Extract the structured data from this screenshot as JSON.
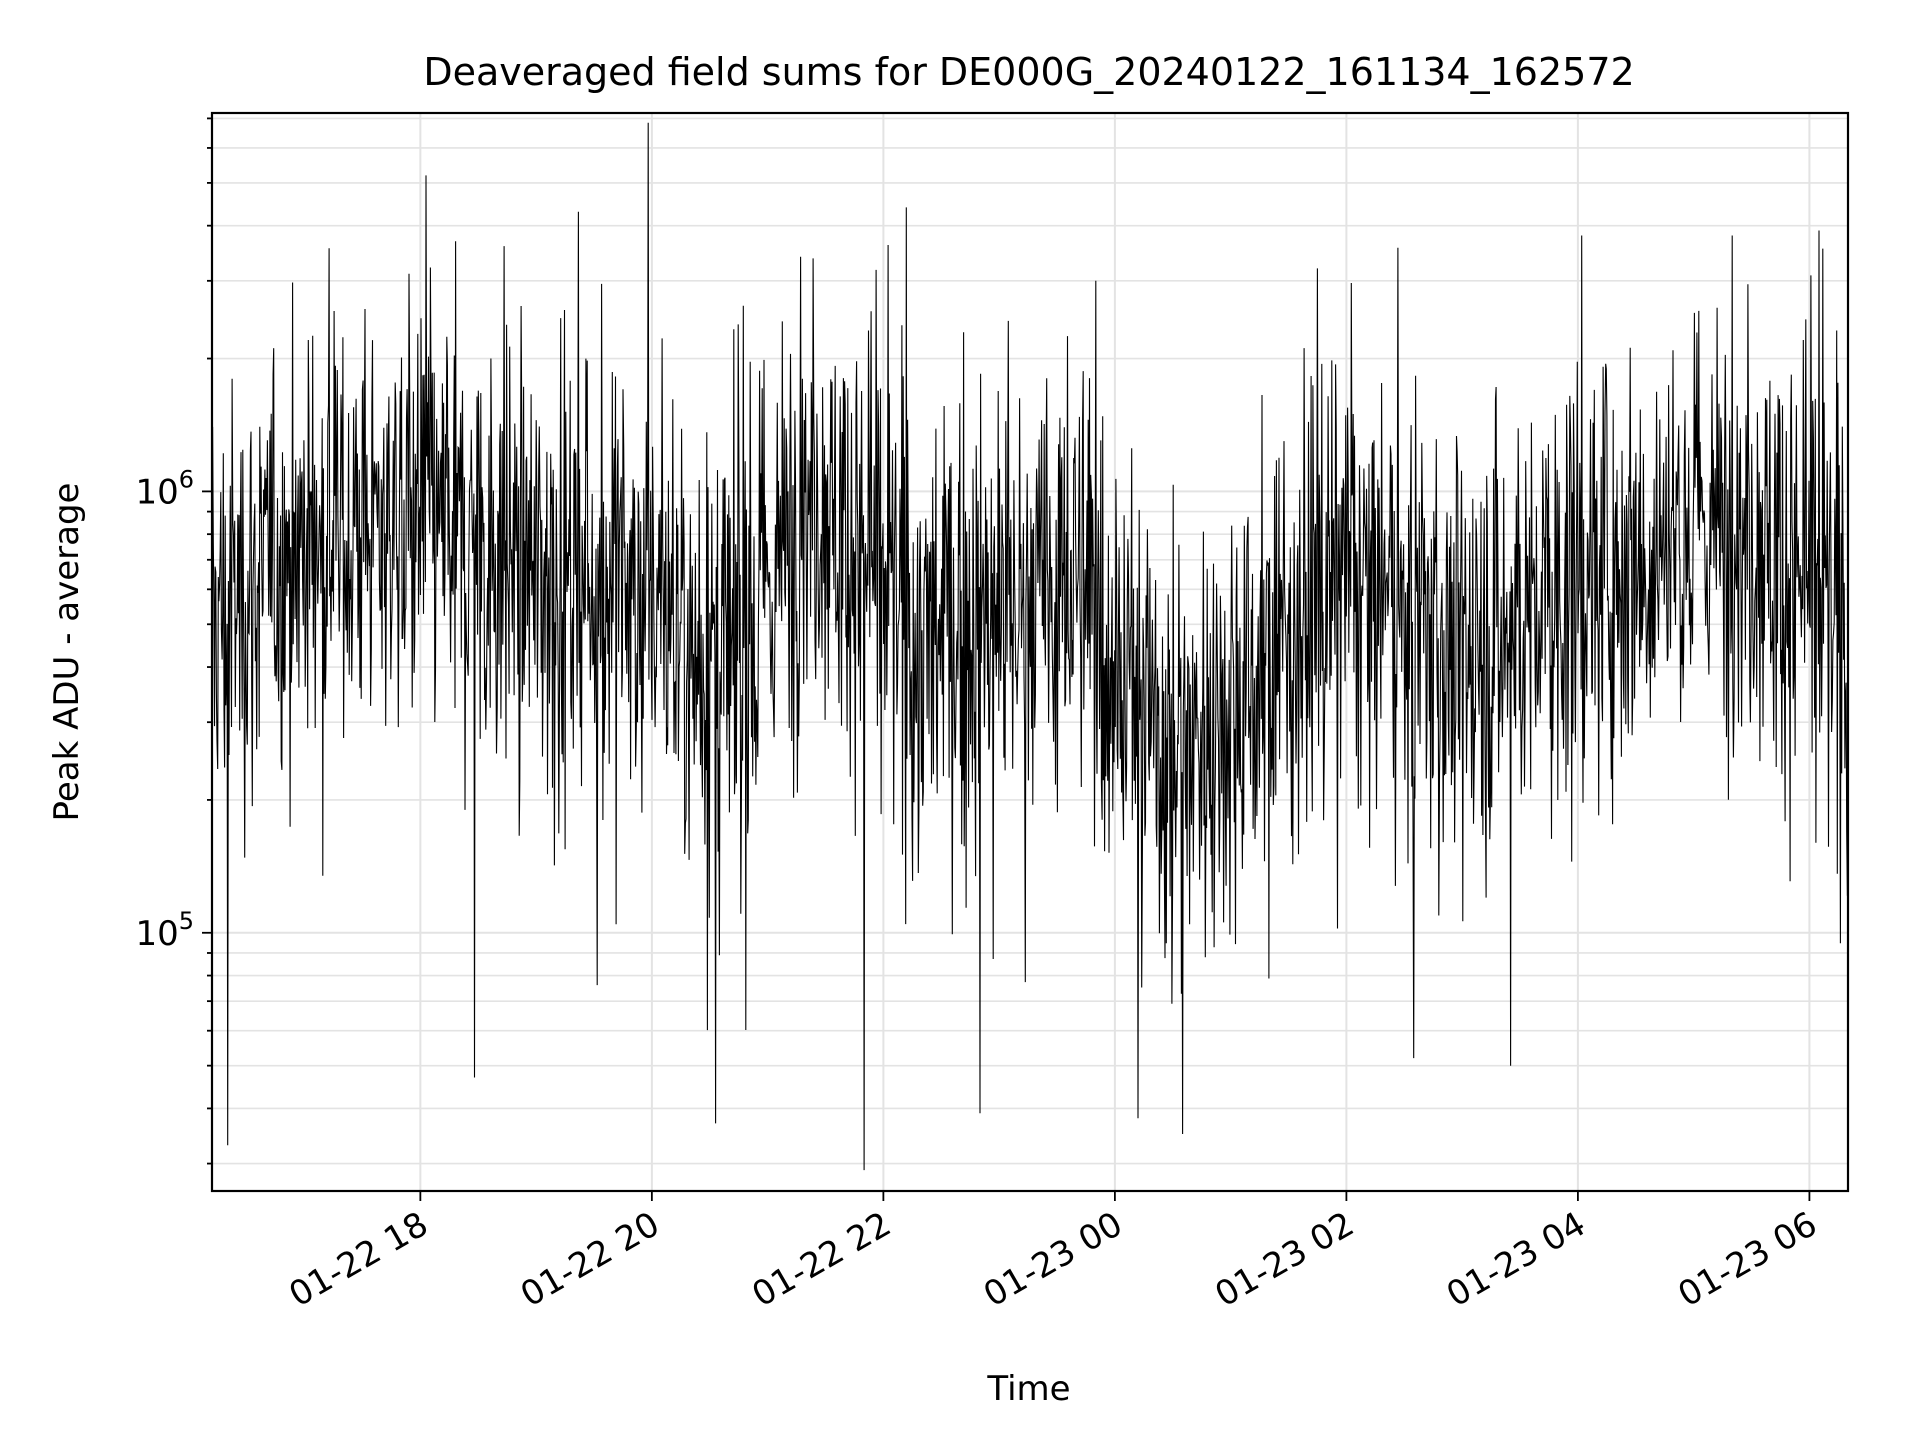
{
  "chart_data": {
    "type": "line",
    "title": "Deaveraged field sums for DE000G_20240122_161134_162572",
    "xlabel": "Time",
    "ylabel": "Peak ADU - average",
    "yscale": "log",
    "grid": true,
    "x_range": [
      "2024-01-22 16:12",
      "2024-01-23 06:20"
    ],
    "ylim": [
      26000,
      7200000
    ],
    "x_ticks": [
      {
        "value": "2024-01-22 18:00",
        "label": "01-22 18"
      },
      {
        "value": "2024-01-22 20:00",
        "label": "01-22 20"
      },
      {
        "value": "2024-01-22 22:00",
        "label": "01-22 22"
      },
      {
        "value": "2024-01-23 00:00",
        "label": "01-23 00"
      },
      {
        "value": "2024-01-23 02:00",
        "label": "01-23 02"
      },
      {
        "value": "2024-01-23 04:00",
        "label": "01-23 04"
      },
      {
        "value": "2024-01-23 06:00",
        "label": "01-23 06"
      }
    ],
    "y_ticks": [
      {
        "value": 100000,
        "base": "10",
        "exp": "5"
      },
      {
        "value": 1000000,
        "base": "10",
        "exp": "6"
      }
    ],
    "series": [
      {
        "color": "#000000",
        "envelope": [
          {
            "t": "2024-01-22 16:12",
            "median": 500000,
            "spread": 0.34
          },
          {
            "t": "2024-01-22 17:00",
            "median": 780000,
            "spread": 0.3
          },
          {
            "t": "2024-01-22 18:00",
            "median": 880000,
            "spread": 0.3
          },
          {
            "t": "2024-01-22 19:00",
            "median": 660000,
            "spread": 0.36
          },
          {
            "t": "2024-01-22 20:00",
            "median": 600000,
            "spread": 0.34
          },
          {
            "t": "2024-01-22 20:40",
            "median": 360000,
            "spread": 0.4
          },
          {
            "t": "2024-01-22 21:20",
            "median": 1000000,
            "spread": 0.32
          },
          {
            "t": "2024-01-22 21:40",
            "median": 850000,
            "spread": 0.32
          },
          {
            "t": "2024-01-22 22:20",
            "median": 440000,
            "spread": 0.38
          },
          {
            "t": "2024-01-22 23:00",
            "median": 520000,
            "spread": 0.34
          },
          {
            "t": "2024-01-22 23:40",
            "median": 640000,
            "spread": 0.34
          },
          {
            "t": "2024-01-23 00:30",
            "median": 250000,
            "spread": 0.34
          },
          {
            "t": "2024-01-23 01:00",
            "median": 330000,
            "spread": 0.34
          },
          {
            "t": "2024-01-23 02:00",
            "median": 650000,
            "spread": 0.32
          },
          {
            "t": "2024-01-23 03:00",
            "median": 420000,
            "spread": 0.34
          },
          {
            "t": "2024-01-23 04:00",
            "median": 620000,
            "spread": 0.34
          },
          {
            "t": "2024-01-23 05:00",
            "median": 860000,
            "spread": 0.32
          },
          {
            "t": "2024-01-23 05:40",
            "median": 780000,
            "spread": 0.34
          },
          {
            "t": "2024-01-23 06:20",
            "median": 450000,
            "spread": 0.38
          }
        ],
        "spikes": [
          {
            "t": "2024-01-22 18:03",
            "value": 5200000
          },
          {
            "t": "2024-01-22 19:22",
            "value": 4300000
          },
          {
            "t": "2024-01-22 21:17",
            "value": 3400000
          },
          {
            "t": "2024-01-22 22:12",
            "value": 4400000
          },
          {
            "t": "2024-01-22 23:50",
            "value": 3000000
          },
          {
            "t": "2024-01-23 01:45",
            "value": 3200000
          },
          {
            "t": "2024-01-23 04:02",
            "value": 3800000
          },
          {
            "t": "2024-01-23 05:20",
            "value": 3800000
          },
          {
            "t": "2024-01-23 06:05",
            "value": 3900000
          },
          {
            "t": "2024-01-22 16:20",
            "value": 33000
          },
          {
            "t": "2024-01-22 18:28",
            "value": 47000
          },
          {
            "t": "2024-01-22 20:33",
            "value": 37000
          },
          {
            "t": "2024-01-22 21:50",
            "value": 29000
          },
          {
            "t": "2024-01-22 22:50",
            "value": 39000
          },
          {
            "t": "2024-01-23 00:12",
            "value": 38000
          },
          {
            "t": "2024-01-23 00:35",
            "value": 35000
          },
          {
            "t": "2024-01-23 02:35",
            "value": 52000
          },
          {
            "t": "2024-01-23 03:25",
            "value": 50000
          }
        ]
      }
    ]
  }
}
